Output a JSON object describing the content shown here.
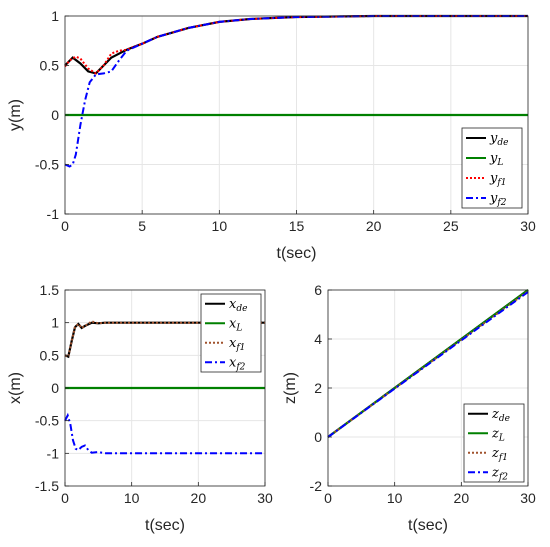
{
  "chart_data": [
    {
      "type": "line",
      "id": "top",
      "xlabel": "t(sec)",
      "ylabel": "y(m)",
      "xlim": [
        0,
        30
      ],
      "ylim": [
        -1,
        1
      ],
      "xticks": [
        0,
        5,
        10,
        15,
        20,
        25,
        30
      ],
      "yticks": [
        -1,
        -0.5,
        0,
        0.5,
        1
      ],
      "grid": true,
      "legend_position": "bottom-right",
      "series": [
        {
          "name": "y_de",
          "label_main": "y",
          "label_sub": "de",
          "color": "#000000",
          "style": "solid",
          "x": [
            0,
            0.5,
            1,
            1.5,
            2,
            2.5,
            3,
            4,
            5,
            6,
            8,
            10,
            12,
            15,
            20,
            25,
            30
          ],
          "y": [
            0.5,
            0.58,
            0.52,
            0.44,
            0.42,
            0.5,
            0.58,
            0.66,
            0.72,
            0.79,
            0.88,
            0.94,
            0.97,
            0.99,
            1.0,
            1.0,
            1.0
          ]
        },
        {
          "name": "y_L",
          "label_main": "y",
          "label_sub": "L",
          "color": "#008000",
          "style": "solid",
          "x": [
            0,
            30
          ],
          "y": [
            0,
            0
          ]
        },
        {
          "name": "y_f1",
          "label_main": "y",
          "label_sub": "f1",
          "color": "#ff0000",
          "style": "dotted",
          "x": [
            0,
            0.3,
            0.7,
            1,
            1.5,
            2,
            2.5,
            3,
            3.5,
            4,
            5,
            6,
            8,
            10,
            12,
            15,
            20,
            25,
            30
          ],
          "y": [
            0.49,
            0.55,
            0.59,
            0.57,
            0.47,
            0.42,
            0.5,
            0.62,
            0.65,
            0.66,
            0.72,
            0.79,
            0.88,
            0.94,
            0.97,
            0.99,
            1.0,
            1.0,
            1.0
          ]
        },
        {
          "name": "y_f2",
          "label_main": "y",
          "label_sub": "f2",
          "color": "#0000ff",
          "style": "dashdot",
          "x": [
            0,
            0.3,
            0.5,
            0.7,
            1,
            1.3,
            1.6,
            2,
            2.5,
            3,
            3.5,
            4,
            5,
            6,
            8,
            10,
            12,
            15,
            20,
            25,
            30
          ],
          "y": [
            -0.5,
            -0.52,
            -0.5,
            -0.4,
            -0.1,
            0.15,
            0.33,
            0.41,
            0.42,
            0.44,
            0.55,
            0.65,
            0.72,
            0.79,
            0.88,
            0.94,
            0.97,
            0.99,
            1.0,
            1.0,
            1.0
          ]
        }
      ]
    },
    {
      "type": "line",
      "id": "bottom-left",
      "xlabel": "t(sec)",
      "ylabel": "x(m)",
      "xlim": [
        0,
        30
      ],
      "ylim": [
        -1.5,
        1.5
      ],
      "xticks": [
        0,
        10,
        20,
        30
      ],
      "yticks": [
        -1.5,
        -1,
        -0.5,
        0,
        0.5,
        1,
        1.5
      ],
      "grid": true,
      "legend_position": "top-right",
      "series": [
        {
          "name": "x_de",
          "label_main": "x",
          "label_sub": "de",
          "color": "#000000",
          "style": "solid",
          "x": [
            0,
            0.5,
            1,
            1.5,
            2,
            2.5,
            3,
            4,
            5,
            6,
            8,
            10,
            20,
            30
          ],
          "y": [
            0.5,
            0.48,
            0.72,
            0.93,
            0.98,
            0.92,
            0.95,
            1.0,
            0.99,
            1.0,
            1.0,
            1.0,
            1.0,
            1.0
          ]
        },
        {
          "name": "x_L",
          "label_main": "x",
          "label_sub": "L",
          "color": "#008000",
          "style": "solid",
          "x": [
            0,
            30
          ],
          "y": [
            0,
            0
          ]
        },
        {
          "name": "x_f1",
          "label_main": "x",
          "label_sub": "f1",
          "color": "#a0522d",
          "style": "dotted",
          "x": [
            0,
            0.5,
            1,
            1.5,
            2,
            2.5,
            3,
            4,
            5,
            6,
            8,
            10,
            20,
            30
          ],
          "y": [
            0.5,
            0.48,
            0.72,
            0.93,
            0.98,
            0.92,
            0.95,
            1.02,
            0.99,
            1.0,
            1.0,
            1.0,
            1.0,
            1.0
          ]
        },
        {
          "name": "x_f2",
          "label_main": "x",
          "label_sub": "f2",
          "color": "#0000ff",
          "style": "dashdot",
          "x": [
            0,
            0.4,
            0.8,
            1.2,
            1.6,
            2,
            2.5,
            3,
            3.5,
            4,
            5,
            6,
            8,
            10,
            20,
            30
          ],
          "y": [
            -0.5,
            -0.42,
            -0.55,
            -0.8,
            -0.93,
            -0.95,
            -0.9,
            -0.88,
            -0.95,
            -0.99,
            -0.98,
            -1.0,
            -1.0,
            -1.0,
            -1.0,
            -1.0
          ]
        }
      ]
    },
    {
      "type": "line",
      "id": "bottom-right",
      "xlabel": "t(sec)",
      "ylabel": "z(m)",
      "xlim": [
        0,
        30
      ],
      "ylim": [
        -2,
        6
      ],
      "xticks": [
        0,
        10,
        20,
        30
      ],
      "yticks": [
        -2,
        0,
        2,
        4,
        6
      ],
      "grid": true,
      "legend_position": "bottom-right",
      "series": [
        {
          "name": "z_de",
          "label_main": "z",
          "label_sub": "de",
          "color": "#000000",
          "style": "solid",
          "x": [
            0,
            30
          ],
          "y": [
            0,
            6
          ]
        },
        {
          "name": "z_L",
          "label_main": "z",
          "label_sub": "L",
          "color": "#008000",
          "style": "solid",
          "x": [
            0,
            30
          ],
          "y": [
            0,
            6
          ]
        },
        {
          "name": "z_f1",
          "label_main": "z",
          "label_sub": "f1",
          "color": "#a0522d",
          "style": "dotted",
          "x": [
            0,
            30
          ],
          "y": [
            0,
            5.95
          ]
        },
        {
          "name": "z_f2",
          "label_main": "z",
          "label_sub": "f2",
          "color": "#0000ff",
          "style": "dashdot",
          "x": [
            0,
            30
          ],
          "y": [
            0,
            5.92
          ]
        }
      ]
    }
  ]
}
